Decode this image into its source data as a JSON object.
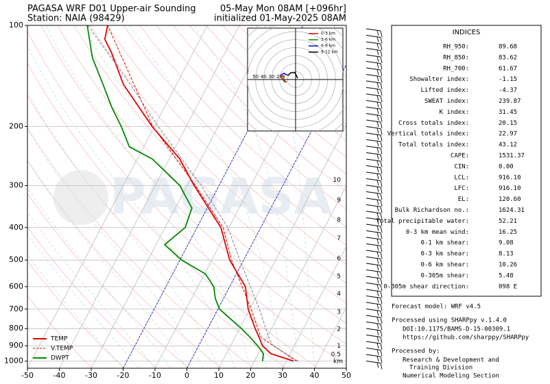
{
  "chart_data": {
    "type": "skewt",
    "title": "PAGASA WRF D01 Upper-air Sounding",
    "station": "Station: NAIA (98429)",
    "valid_time": "05-May Mon 08AM [+096hr]",
    "init_time": "initialized 01-May-2025 08AM",
    "watermark": "PAGASA",
    "xlim": [
      -50,
      50
    ],
    "xticks": [
      -50,
      -40,
      -30,
      -20,
      -10,
      0,
      10,
      20,
      30,
      40,
      50
    ],
    "ylim": [
      100,
      1050
    ],
    "log_y": true,
    "yticks": [
      100,
      200,
      300,
      400,
      500,
      600,
      700,
      800,
      900,
      1000
    ],
    "grid": true,
    "highlight_isotherms": [
      -20,
      0
    ],
    "highlight_color": "#0000cc",
    "legend": "lower left",
    "series": [
      {
        "name": "TEMP",
        "color": "#e00000",
        "dash": false,
        "pressure": [
          1000,
          950,
          900,
          850,
          800,
          700,
          600,
          500,
          400,
          300,
          250,
          200,
          150,
          120,
          110,
          100
        ],
        "values": [
          32.3,
          23.9,
          20.0,
          17.6,
          14.9,
          9.5,
          4.9,
          -4.4,
          -12.5,
          -27.8,
          -36.7,
          -50.7,
          -66.6,
          -75.8,
          -79.9,
          -81.3
        ]
      },
      {
        "name": "V.TEMP",
        "color": "#e00000",
        "dash": true,
        "pressure": [
          1000,
          850,
          700,
          500,
          400,
          300,
          200,
          100
        ],
        "values": [
          33.2,
          18.2,
          10.4,
          -3.8,
          -11.8,
          -27.4,
          -50.5,
          -81.3
        ]
      },
      {
        "name": "DWPT",
        "color": "#008800",
        "dash": false,
        "pressure": [
          1000,
          950,
          900,
          850,
          800,
          700,
          650,
          600,
          550,
          500,
          450,
          400,
          350,
          300,
          250,
          230,
          200,
          175,
          150,
          125,
          100
        ],
        "values": [
          22.6,
          21.6,
          18.5,
          14.8,
          10.6,
          0.5,
          -2.6,
          -5,
          -9.7,
          -19.5,
          -27.3,
          -23.7,
          -24.8,
          -32.3,
          -45.3,
          -54.5,
          -60.4,
          -66.6,
          -73,
          -80.7,
          -87.7
        ]
      },
      {
        "color": "#808080",
        "dash": true,
        "pressure": [
          1000,
          900,
          850,
          700,
          500,
          400,
          300,
          200,
          150,
          100
        ],
        "values": [
          33.7,
          23.3,
          20.6,
          13,
          -1.2,
          -10.3,
          -25.6,
          -48.8,
          -64.4,
          -87.5
        ]
      }
    ],
    "height_unit": "km",
    "height_ticks": [
      {
        "value": 10,
        "pressure": 289
      },
      {
        "value": 9,
        "pressure": 332
      },
      {
        "value": 8,
        "pressure": 380
      },
      {
        "value": 7,
        "pressure": 431
      },
      {
        "value": 6,
        "pressure": 495
      },
      {
        "value": 5,
        "pressure": 559
      },
      {
        "value": 4,
        "pressure": 631
      },
      {
        "value": 3,
        "pressure": 714
      },
      {
        "value": 2,
        "pressure": 803
      },
      {
        "value": 1,
        "pressure": 902
      },
      {
        "value": 0.5,
        "pressure": 955
      }
    ],
    "hodograph": {
      "range": 60,
      "ring_ticks": [
        20,
        30,
        40,
        50
      ],
      "segments": [
        {
          "name": "0-3 km",
          "color": "#e00000",
          "u": [
            -11,
            -16,
            -18,
            -14
          ],
          "v": [
            -3.4,
            0,
            3.4,
            5
          ]
        },
        {
          "name": "3-6 km",
          "color": "#008800",
          "u": [
            -14,
            -15.5,
            -13
          ],
          "v": [
            5,
            -0.9,
            -3.4
          ]
        },
        {
          "name": "6-9 km",
          "color": "#0000cc",
          "u": [
            -19,
            -14.7,
            -9.5
          ],
          "v": [
            5,
            7.8,
            5.2
          ]
        },
        {
          "name": "9-12 km",
          "color": "#000000",
          "u": [
            -9.5,
            -6,
            -0.9,
            0.9,
            2.6
          ],
          "v": [
            5.2,
            8.6,
            8.6,
            5.2,
            1.7
          ]
        }
      ]
    }
  },
  "indices": {
    "title": "INDICES",
    "rows": [
      [
        "RH_950:",
        "89.68"
      ],
      [
        "RH_850:",
        "83.62"
      ],
      [
        "RH_700:",
        "61.67"
      ],
      [
        "Showalter index:",
        "-1.15"
      ],
      [
        "Lifted index:",
        "-4.37"
      ],
      [
        "SWEAT index:",
        "239.87"
      ],
      [
        "K index:",
        "31.45"
      ],
      [
        "Cross totals index:",
        "20.15"
      ],
      [
        "Vertical totals index:",
        "22.97"
      ],
      [
        "Total totals index:",
        "43.12"
      ],
      [
        "CAPE:",
        "1531.37"
      ],
      [
        "CIN:",
        "0.00"
      ],
      [
        "LCL:",
        "916.10"
      ],
      [
        "LFC:",
        "916.10"
      ],
      [
        "EL:",
        "120.60"
      ],
      [
        "Bulk Richardson no.:",
        "1624.31"
      ],
      [
        "Total precipitable water:",
        "52.21"
      ],
      [
        "0-3 km mean wind:",
        "16.25"
      ],
      [
        "0-1 km shear:",
        "9.08"
      ],
      [
        "0-3 km shear:",
        "8.13"
      ],
      [
        "0-6 km shear:",
        "10.26"
      ],
      [
        "0-305m shear:",
        "5.48"
      ],
      [
        "0-305m shear direction:",
        "098 E"
      ]
    ]
  },
  "footer": [
    "Forecast model: WRF v4.5",
    "Processed using SHARPpy v.1.4.0",
    "DOI:10.1175/BAMS-D-15-00309.1",
    "https://github.com/sharppy/SHARPpy",
    "Processed by:",
    "Research & Development and",
    "Training Division",
    "Numerical Modeling Section"
  ]
}
